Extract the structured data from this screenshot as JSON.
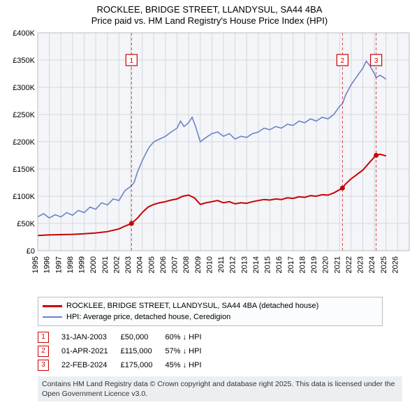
{
  "title": {
    "line1": "ROCKLEE, BRIDGE STREET, LLANDYSUL, SA44 4BA",
    "line2": "Price paid vs. HM Land Registry's House Price Index (HPI)"
  },
  "chart": {
    "type": "line",
    "background_color": "#f3f5f8",
    "grid_color": "#d5d8dc",
    "x": {
      "min": 1995,
      "max": 2027,
      "ticks": [
        1995,
        1996,
        1997,
        1998,
        1999,
        2000,
        2001,
        2002,
        2003,
        2004,
        2005,
        2006,
        2007,
        2008,
        2009,
        2010,
        2011,
        2012,
        2013,
        2014,
        2015,
        2016,
        2017,
        2018,
        2019,
        2020,
        2021,
        2022,
        2023,
        2024,
        2025,
        2026
      ]
    },
    "y": {
      "min": 0,
      "max": 400000,
      "step": 50000,
      "tick_labels": [
        "£0",
        "£50K",
        "£100K",
        "£150K",
        "£200K",
        "£250K",
        "£300K",
        "£350K",
        "£400K"
      ]
    },
    "series_hpi": {
      "color": "#6b84c7",
      "stroke_width": 1.6,
      "name": "HPI: Average price, detached house, Ceredigion",
      "points": [
        [
          1995.0,
          62000
        ],
        [
          1995.5,
          68000
        ],
        [
          1996.0,
          60000
        ],
        [
          1996.5,
          66000
        ],
        [
          1997.0,
          62000
        ],
        [
          1997.5,
          70000
        ],
        [
          1998.0,
          65000
        ],
        [
          1998.5,
          74000
        ],
        [
          1999.0,
          70000
        ],
        [
          1999.5,
          80000
        ],
        [
          2000.0,
          76000
        ],
        [
          2000.5,
          88000
        ],
        [
          2001.0,
          84000
        ],
        [
          2001.5,
          95000
        ],
        [
          2002.0,
          92000
        ],
        [
          2002.5,
          110000
        ],
        [
          2003.0,
          118000
        ],
        [
          2003.3,
          125000
        ],
        [
          2003.6,
          145000
        ],
        [
          2004.0,
          165000
        ],
        [
          2004.3,
          178000
        ],
        [
          2004.6,
          190000
        ],
        [
          2005.0,
          200000
        ],
        [
          2005.5,
          205000
        ],
        [
          2006.0,
          210000
        ],
        [
          2006.5,
          218000
        ],
        [
          2007.0,
          225000
        ],
        [
          2007.3,
          238000
        ],
        [
          2007.6,
          228000
        ],
        [
          2008.0,
          235000
        ],
        [
          2008.3,
          245000
        ],
        [
          2008.6,
          228000
        ],
        [
          2009.0,
          200000
        ],
        [
          2009.5,
          208000
        ],
        [
          2010.0,
          215000
        ],
        [
          2010.5,
          218000
        ],
        [
          2011.0,
          210000
        ],
        [
          2011.5,
          215000
        ],
        [
          2012.0,
          205000
        ],
        [
          2012.5,
          210000
        ],
        [
          2013.0,
          208000
        ],
        [
          2013.5,
          215000
        ],
        [
          2014.0,
          218000
        ],
        [
          2014.5,
          225000
        ],
        [
          2015.0,
          222000
        ],
        [
          2015.5,
          228000
        ],
        [
          2016.0,
          225000
        ],
        [
          2016.5,
          232000
        ],
        [
          2017.0,
          230000
        ],
        [
          2017.5,
          238000
        ],
        [
          2018.0,
          235000
        ],
        [
          2018.5,
          242000
        ],
        [
          2019.0,
          238000
        ],
        [
          2019.5,
          245000
        ],
        [
          2020.0,
          242000
        ],
        [
          2020.5,
          250000
        ],
        [
          2021.0,
          265000
        ],
        [
          2021.25,
          270000
        ],
        [
          2021.5,
          285000
        ],
        [
          2022.0,
          305000
        ],
        [
          2022.5,
          320000
        ],
        [
          2023.0,
          335000
        ],
        [
          2023.3,
          348000
        ],
        [
          2023.6,
          340000
        ],
        [
          2024.0,
          325000
        ],
        [
          2024.15,
          318000
        ],
        [
          2024.5,
          322000
        ],
        [
          2025.0,
          315000
        ]
      ]
    },
    "series_paid": {
      "color": "#cc0000",
      "stroke_width": 2,
      "name": "ROCKLEE, BRIDGE STREET, LLANDYSUL, SA44 4BA (detached house)",
      "points": [
        [
          1995.0,
          28000
        ],
        [
          1996.0,
          29000
        ],
        [
          1997.0,
          29500
        ],
        [
          1998.0,
          30000
        ],
        [
          1999.0,
          31000
        ],
        [
          2000.0,
          32500
        ],
        [
          2001.0,
          35000
        ],
        [
          2002.0,
          40000
        ],
        [
          2002.5,
          45000
        ],
        [
          2003.08,
          50000
        ],
        [
          2003.6,
          60000
        ],
        [
          2004.0,
          70000
        ],
        [
          2004.5,
          80000
        ],
        [
          2005.0,
          85000
        ],
        [
          2005.5,
          88000
        ],
        [
          2006.0,
          90000
        ],
        [
          2006.5,
          93000
        ],
        [
          2007.0,
          95000
        ],
        [
          2007.5,
          100000
        ],
        [
          2008.0,
          102000
        ],
        [
          2008.5,
          97000
        ],
        [
          2009.0,
          85000
        ],
        [
          2009.5,
          88000
        ],
        [
          2010.0,
          90000
        ],
        [
          2010.5,
          92000
        ],
        [
          2011.0,
          88000
        ],
        [
          2011.5,
          90000
        ],
        [
          2012.0,
          86000
        ],
        [
          2012.5,
          88000
        ],
        [
          2013.0,
          87000
        ],
        [
          2013.5,
          90000
        ],
        [
          2014.0,
          92000
        ],
        [
          2014.5,
          94000
        ],
        [
          2015.0,
          93000
        ],
        [
          2015.5,
          95000
        ],
        [
          2016.0,
          94000
        ],
        [
          2016.5,
          97000
        ],
        [
          2017.0,
          96000
        ],
        [
          2017.5,
          99000
        ],
        [
          2018.0,
          98000
        ],
        [
          2018.5,
          101000
        ],
        [
          2019.0,
          100000
        ],
        [
          2019.5,
          103000
        ],
        [
          2020.0,
          102000
        ],
        [
          2020.5,
          106000
        ],
        [
          2021.0,
          112000
        ],
        [
          2021.25,
          115000
        ],
        [
          2021.5,
          122000
        ],
        [
          2022.0,
          132000
        ],
        [
          2022.5,
          140000
        ],
        [
          2023.0,
          148000
        ],
        [
          2023.5,
          160000
        ],
        [
          2024.0,
          172000
        ],
        [
          2024.15,
          175000
        ],
        [
          2024.5,
          177000
        ],
        [
          2025.0,
          174000
        ]
      ]
    },
    "markers": [
      {
        "num": "1",
        "year": 2003.08,
        "value": 50000,
        "label_y": 350000
      },
      {
        "num": "2",
        "year": 2021.25,
        "value": 115000,
        "label_y": 350000
      },
      {
        "num": "3",
        "year": 2024.15,
        "value": 175000,
        "label_y": 350000
      }
    ]
  },
  "legend": {
    "paid": "ROCKLEE, BRIDGE STREET, LLANDYSUL, SA44 4BA (detached house)",
    "hpi": "HPI: Average price, detached house, Ceredigion"
  },
  "marker_rows": [
    {
      "num": "1",
      "date": "31-JAN-2003",
      "price": "£50,000",
      "pct": "60% ↓ HPI"
    },
    {
      "num": "2",
      "date": "01-APR-2021",
      "price": "£115,000",
      "pct": "57% ↓ HPI"
    },
    {
      "num": "3",
      "date": "22-FEB-2024",
      "price": "£175,000",
      "pct": "45% ↓ HPI"
    }
  ],
  "attribution": "Contains HM Land Registry data © Crown copyright and database right 2025. This data is licensed under the Open Government Licence v3.0."
}
